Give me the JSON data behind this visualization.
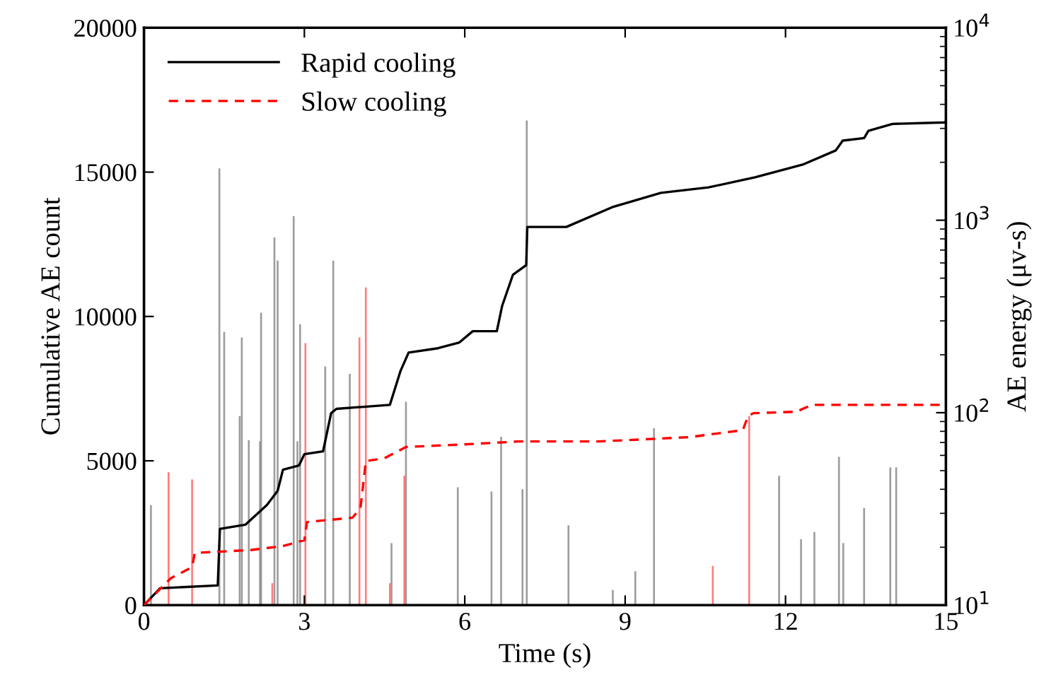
{
  "chart_data": {
    "type": "line",
    "xlabel": "Time (s)",
    "ylabel": "Cumulative AE count",
    "y2label": "AE energy (μv-s)",
    "xlim": [
      0,
      15
    ],
    "xticks": [
      0,
      3,
      6,
      9,
      12,
      15
    ],
    "ylim": [
      0,
      20000
    ],
    "yticks": [
      0,
      5000,
      10000,
      15000,
      20000
    ],
    "y2lim": [
      10,
      10000
    ],
    "y2ticks": [
      {
        "value": 10,
        "label": "10$^{1}$"
      },
      {
        "value": 100,
        "label": "10$^{2}$"
      },
      {
        "value": 1000,
        "label": "10$^{3}$"
      },
      {
        "value": 10000,
        "label": "10$^{4}$"
      }
    ],
    "log": "y2",
    "grid": false,
    "legend": "top left",
    "series": [
      {
        "type": "bar",
        "axis": "y2",
        "color": "#8c8c8c",
        "x": [
          0.13,
          1.41,
          1.5,
          1.79,
          1.83,
          1.96,
          2.17,
          2.19,
          2.44,
          2.5,
          2.8,
          2.87,
          2.92,
          3.39,
          3.54,
          3.85,
          4.63,
          4.9,
          5.87,
          6.5,
          6.68,
          7.08,
          7.16,
          7.94,
          8.77,
          9.19,
          9.54,
          11.88,
          12.29,
          12.54,
          13.0,
          13.08,
          13.47,
          13.96,
          14.07
        ],
        "values": [
          33,
          1860,
          263,
          96,
          246,
          72,
          71,
          331,
          813,
          617,
          1050,
          71,
          288,
          174,
          617,
          159,
          21,
          114,
          41,
          39,
          75,
          40,
          3300,
          26,
          12,
          15,
          83,
          47,
          22,
          24,
          59,
          21,
          32,
          52,
          52
        ]
      },
      {
        "type": "bar",
        "axis": "y2",
        "color": "#ff6666",
        "x": [
          0.46,
          0.9,
          2.4,
          3.02,
          4.03,
          4.15,
          4.6,
          4.87,
          10.64,
          11.32
        ],
        "values": [
          49,
          45,
          13,
          230,
          246,
          447,
          13,
          47,
          16,
          96
        ]
      },
      {
        "name": "Rapid cooling",
        "color": "#000000",
        "line_style": "solid",
        "x": [
          0,
          0.3,
          1.38,
          1.42,
          1.9,
          2.3,
          2.5,
          2.6,
          2.9,
          3.0,
          3.35,
          3.5,
          3.6,
          4.6,
          4.8,
          4.95,
          5.5,
          5.9,
          6.15,
          6.6,
          6.7,
          6.9,
          7.15,
          7.17,
          7.9,
          8.78,
          9.67,
          10.56,
          11.43,
          12.32,
          12.94,
          13.07,
          13.47,
          13.55,
          14.0,
          14.97,
          15
        ],
        "values": [
          0,
          587,
          685,
          2640,
          2790,
          3470,
          3960,
          4690,
          4840,
          5230,
          5330,
          6650,
          6800,
          6940,
          8120,
          8750,
          8900,
          9100,
          9490,
          9490,
          10370,
          11440,
          11780,
          13100,
          13100,
          13800,
          14280,
          14470,
          14820,
          15260,
          15750,
          16090,
          16180,
          16430,
          16670,
          16720,
          16750
        ]
      },
      {
        "name": "Slow cooling",
        "color": "#ff0000",
        "line_style": "dashed",
        "x": [
          0,
          0.5,
          0.9,
          0.95,
          2.0,
          2.6,
          3.0,
          3.05,
          3.9,
          4.05,
          4.15,
          4.5,
          4.9,
          6.0,
          7.0,
          8.5,
          10.2,
          11.2,
          11.3,
          11.4,
          12.2,
          12.5,
          15
        ],
        "values": [
          0,
          930,
          1320,
          1810,
          1910,
          2050,
          2250,
          2880,
          3030,
          3370,
          4990,
          5090,
          5480,
          5570,
          5670,
          5670,
          5820,
          6060,
          6550,
          6650,
          6700,
          6940,
          6940
        ]
      }
    ]
  }
}
